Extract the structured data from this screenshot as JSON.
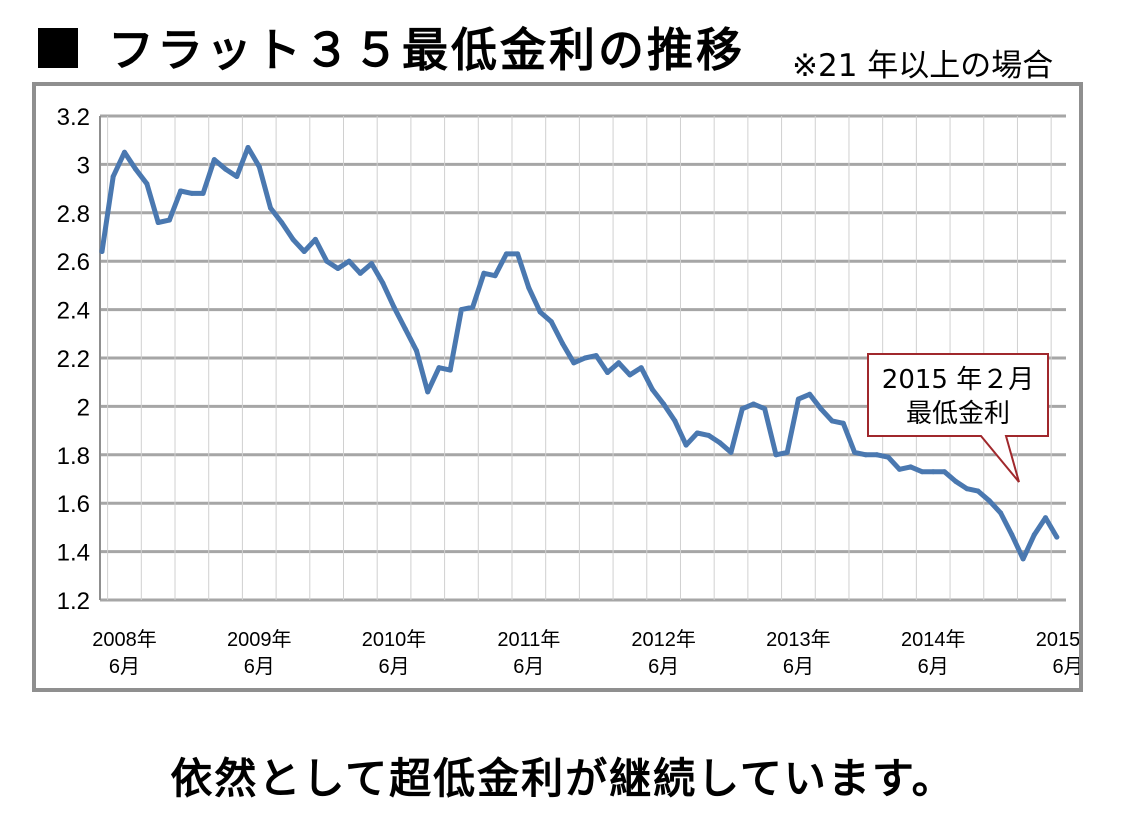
{
  "header": {
    "title": "フラット３５最低金利の推移",
    "note": "※21 年以上の場合"
  },
  "footer": {
    "message": "依然として超低金利が継続しています。"
  },
  "colors": {
    "line": "#4a78b0",
    "grid": "#a6a6a6",
    "callout_border": "#a0282c"
  },
  "chart_data": {
    "type": "line",
    "title": "フラット３５最低金利の推移",
    "ylim": [
      1.2,
      3.2
    ],
    "y_ticks": [
      "1.2",
      "1.4",
      "1.6",
      "1.8",
      "2",
      "2.2",
      "2.4",
      "2.6",
      "2.8",
      "3",
      "3.2"
    ],
    "x_ticks": [
      {
        "year": "2008年",
        "month": "6月"
      },
      {
        "year": "2009年",
        "month": "6月"
      },
      {
        "year": "2010年",
        "month": "6月"
      },
      {
        "year": "2011年",
        "month": "6月"
      },
      {
        "year": "2012年",
        "month": "6月"
      },
      {
        "year": "2013年",
        "month": "6月"
      },
      {
        "year": "2014年",
        "month": "6月"
      },
      {
        "year": "2015年",
        "month": "6月"
      }
    ],
    "grid": true,
    "series": [
      {
        "x": [
          "2008-04",
          "2008-05",
          "2008-06",
          "2008-07",
          "2008-08",
          "2008-09",
          "2008-10",
          "2008-11",
          "2008-12",
          "2009-01",
          "2009-02",
          "2009-03",
          "2009-04",
          "2009-05",
          "2009-06",
          "2009-07",
          "2009-08",
          "2009-09",
          "2009-10",
          "2009-11",
          "2009-12",
          "2010-01",
          "2010-02",
          "2010-03",
          "2010-04",
          "2010-05",
          "2010-06",
          "2010-07",
          "2010-08",
          "2010-09",
          "2010-10",
          "2010-11",
          "2010-12",
          "2011-01",
          "2011-02",
          "2011-03",
          "2011-04",
          "2011-05",
          "2011-06",
          "2011-07",
          "2011-08",
          "2011-09",
          "2011-10",
          "2011-11",
          "2011-12",
          "2012-01",
          "2012-02",
          "2012-03",
          "2012-04",
          "2012-05",
          "2012-06",
          "2012-07",
          "2012-08",
          "2012-09",
          "2012-10",
          "2012-11",
          "2012-12",
          "2013-01",
          "2013-02",
          "2013-03",
          "2013-04",
          "2013-05",
          "2013-06",
          "2013-07",
          "2013-08",
          "2013-09",
          "2013-10",
          "2013-11",
          "2013-12",
          "2014-01",
          "2014-02",
          "2014-03",
          "2014-04",
          "2014-05",
          "2014-06",
          "2014-07",
          "2014-08",
          "2014-09",
          "2014-10",
          "2014-11",
          "2014-12",
          "2015-01",
          "2015-02",
          "2015-03",
          "2015-04",
          "2015-05"
        ],
        "values": [
          2.64,
          2.95,
          3.05,
          2.98,
          2.92,
          2.76,
          2.77,
          2.89,
          2.88,
          2.88,
          3.02,
          2.98,
          2.95,
          3.07,
          2.99,
          2.82,
          2.76,
          2.69,
          2.64,
          2.69,
          2.6,
          2.57,
          2.6,
          2.55,
          2.59,
          2.51,
          2.41,
          2.32,
          2.23,
          2.06,
          2.16,
          2.15,
          2.4,
          2.41,
          2.55,
          2.54,
          2.63,
          2.63,
          2.49,
          2.39,
          2.35,
          2.26,
          2.18,
          2.2,
          2.21,
          2.14,
          2.18,
          2.13,
          2.16,
          2.07,
          2.01,
          1.94,
          1.84,
          1.89,
          1.88,
          1.85,
          1.81,
          1.99,
          2.01,
          1.99,
          1.8,
          1.81,
          2.03,
          2.05,
          1.99,
          1.94,
          1.93,
          1.81,
          1.8,
          1.8,
          1.79,
          1.74,
          1.75,
          1.73,
          1.73,
          1.73,
          1.69,
          1.66,
          1.65,
          1.61,
          1.56,
          1.47,
          1.37,
          1.47,
          1.54,
          1.46
        ]
      }
    ],
    "annotation": {
      "line1": "2015 年２月",
      "line2": "最低金利"
    }
  }
}
